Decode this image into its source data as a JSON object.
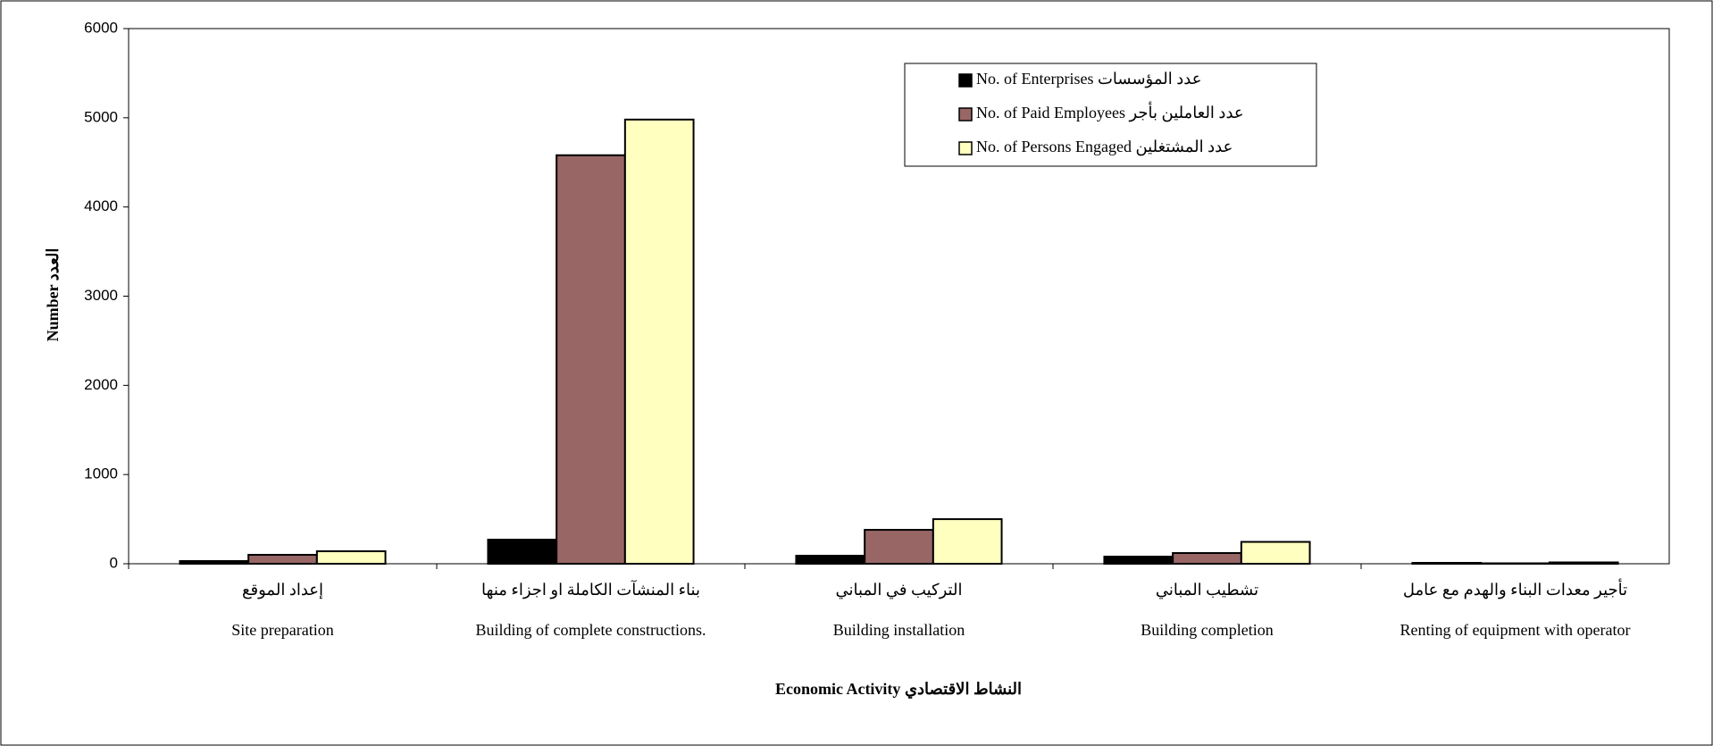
{
  "chart_data": {
    "type": "bar",
    "ylabel": "Number العدد",
    "xlabel": "Economic Activity النشاط الاقتصادي",
    "categories": [
      "Site preparation",
      "Building of complete constructions.",
      "Building installation",
      "Building completion",
      "Renting of equipment with operator"
    ],
    "categories_ar": [
      "إعداد الموقع",
      "بناء المنشآت الكاملة او اجزاء منها",
      "التركيب في المباني",
      "تشطيب المباني",
      "تأجير معدات البناء والهدم مع عامل"
    ],
    "series": [
      {
        "name": "No. of Enterprises عدد  المؤسسات",
        "color": "#000000",
        "values": [
          30,
          270,
          90,
          80,
          10
        ]
      },
      {
        "name": "No. of Paid Employees عدد العاملين بأجر",
        "color": "#996666",
        "values": [
          100,
          4580,
          380,
          120,
          5
        ]
      },
      {
        "name": "No. of Persons  Engaged عدد المشتغلين",
        "color": "#ffffc0",
        "values": [
          140,
          4980,
          500,
          245,
          15
        ]
      }
    ],
    "ylim": [
      0,
      6000
    ],
    "yticks": [
      0,
      1000,
      2000,
      3000,
      4000,
      5000,
      6000
    ],
    "legend": "top-right"
  }
}
